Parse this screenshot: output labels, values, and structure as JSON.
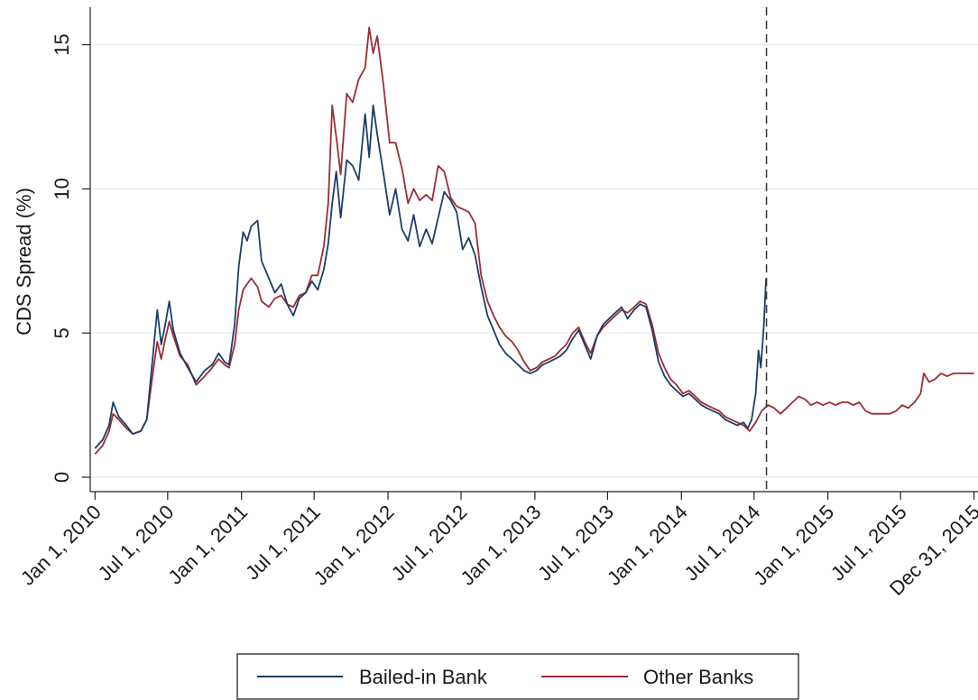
{
  "chart_data": {
    "type": "line",
    "title": "",
    "xlabel": "",
    "ylabel": "CDS Spread (%)",
    "ylim": [
      -0.5,
      16.3
    ],
    "xlim": [
      "2009-12-20",
      "2016-01-10"
    ],
    "yticks": [
      0,
      5,
      10,
      15
    ],
    "xticks": [
      {
        "date": "2010-01-01",
        "label": "Jan 1, 2010"
      },
      {
        "date": "2010-07-01",
        "label": "Jul 1, 2010"
      },
      {
        "date": "2011-01-01",
        "label": "Jan 1, 2011"
      },
      {
        "date": "2011-07-01",
        "label": "Jul 1, 2011"
      },
      {
        "date": "2012-01-01",
        "label": "Jan 1, 2012"
      },
      {
        "date": "2012-07-01",
        "label": "Jul 1, 2012"
      },
      {
        "date": "2013-01-01",
        "label": "Jan 1, 2013"
      },
      {
        "date": "2013-07-01",
        "label": "Jul 1, 2013"
      },
      {
        "date": "2014-01-01",
        "label": "Jan 1, 2014"
      },
      {
        "date": "2014-07-01",
        "label": "Jul 1, 2014"
      },
      {
        "date": "2015-01-01",
        "label": "Jan 1, 2015"
      },
      {
        "date": "2015-07-01",
        "label": "Jul 1, 2015"
      },
      {
        "date": "2015-12-31",
        "label": "Dec 31, 2015"
      }
    ],
    "grid": true,
    "legend_position": "bottom",
    "vline": {
      "date": "2014-08-01",
      "style": "dashed"
    },
    "series": [
      {
        "name": "Bailed-in Bank",
        "color": "#1f3d66",
        "points": [
          [
            "2010-01-01",
            1.0
          ],
          [
            "2010-01-20",
            1.3
          ],
          [
            "2010-02-05",
            1.8
          ],
          [
            "2010-02-15",
            2.6
          ],
          [
            "2010-03-01",
            2.1
          ],
          [
            "2010-03-20",
            1.8
          ],
          [
            "2010-04-05",
            1.5
          ],
          [
            "2010-04-25",
            1.6
          ],
          [
            "2010-05-10",
            2.0
          ],
          [
            "2010-05-25",
            4.2
          ],
          [
            "2010-06-05",
            5.8
          ],
          [
            "2010-06-15",
            4.6
          ],
          [
            "2010-06-25",
            5.3
          ],
          [
            "2010-07-05",
            6.1
          ],
          [
            "2010-07-15",
            5.1
          ],
          [
            "2010-08-01",
            4.3
          ],
          [
            "2010-08-20",
            3.8
          ],
          [
            "2010-09-10",
            3.3
          ],
          [
            "2010-10-01",
            3.7
          ],
          [
            "2010-10-20",
            3.9
          ],
          [
            "2010-11-05",
            4.3
          ],
          [
            "2010-11-20",
            4.0
          ],
          [
            "2010-12-01",
            3.9
          ],
          [
            "2010-12-15",
            5.3
          ],
          [
            "2010-12-25",
            7.3
          ],
          [
            "2011-01-05",
            8.5
          ],
          [
            "2011-01-15",
            8.2
          ],
          [
            "2011-01-25",
            8.7
          ],
          [
            "2011-02-10",
            8.9
          ],
          [
            "2011-02-20",
            7.5
          ],
          [
            "2011-03-10",
            6.9
          ],
          [
            "2011-03-25",
            6.4
          ],
          [
            "2011-04-10",
            6.7
          ],
          [
            "2011-04-25",
            6.0
          ],
          [
            "2011-05-10",
            5.6
          ],
          [
            "2011-05-25",
            6.2
          ],
          [
            "2011-06-10",
            6.4
          ],
          [
            "2011-06-25",
            6.8
          ],
          [
            "2011-07-10",
            6.5
          ],
          [
            "2011-07-25",
            7.2
          ],
          [
            "2011-08-05",
            8.1
          ],
          [
            "2011-08-15",
            9.5
          ],
          [
            "2011-08-25",
            10.6
          ],
          [
            "2011-09-05",
            9.0
          ],
          [
            "2011-09-20",
            11.0
          ],
          [
            "2011-10-05",
            10.8
          ],
          [
            "2011-10-20",
            10.3
          ],
          [
            "2011-11-05",
            12.6
          ],
          [
            "2011-11-15",
            11.1
          ],
          [
            "2011-11-25",
            12.9
          ],
          [
            "2011-12-05",
            11.9
          ],
          [
            "2011-12-20",
            10.6
          ],
          [
            "2012-01-05",
            9.1
          ],
          [
            "2012-01-20",
            10.0
          ],
          [
            "2012-02-05",
            8.6
          ],
          [
            "2012-02-20",
            8.2
          ],
          [
            "2012-03-05",
            9.1
          ],
          [
            "2012-03-20",
            8.0
          ],
          [
            "2012-04-05",
            8.6
          ],
          [
            "2012-04-20",
            8.1
          ],
          [
            "2012-05-05",
            9.0
          ],
          [
            "2012-05-20",
            9.9
          ],
          [
            "2012-06-05",
            9.6
          ],
          [
            "2012-06-20",
            9.2
          ],
          [
            "2012-07-05",
            7.9
          ],
          [
            "2012-07-20",
            8.3
          ],
          [
            "2012-08-05",
            7.7
          ],
          [
            "2012-08-20",
            6.6
          ],
          [
            "2012-09-05",
            5.6
          ],
          [
            "2012-09-20",
            5.1
          ],
          [
            "2012-10-05",
            4.6
          ],
          [
            "2012-10-20",
            4.3
          ],
          [
            "2012-11-05",
            4.1
          ],
          [
            "2012-11-20",
            3.9
          ],
          [
            "2012-12-05",
            3.7
          ],
          [
            "2012-12-20",
            3.6
          ],
          [
            "2013-01-05",
            3.7
          ],
          [
            "2013-01-20",
            3.9
          ],
          [
            "2013-02-05",
            4.0
          ],
          [
            "2013-02-20",
            4.1
          ],
          [
            "2013-03-05",
            4.2
          ],
          [
            "2013-03-20",
            4.4
          ],
          [
            "2013-04-05",
            4.8
          ],
          [
            "2013-04-20",
            5.1
          ],
          [
            "2013-05-05",
            4.6
          ],
          [
            "2013-05-20",
            4.1
          ],
          [
            "2013-06-05",
            4.9
          ],
          [
            "2013-06-20",
            5.3
          ],
          [
            "2013-07-05",
            5.5
          ],
          [
            "2013-07-20",
            5.7
          ],
          [
            "2013-08-05",
            5.9
          ],
          [
            "2013-08-20",
            5.5
          ],
          [
            "2013-09-05",
            5.8
          ],
          [
            "2013-09-20",
            6.0
          ],
          [
            "2013-10-05",
            5.9
          ],
          [
            "2013-10-20",
            5.1
          ],
          [
            "2013-11-05",
            4.0
          ],
          [
            "2013-11-20",
            3.5
          ],
          [
            "2013-12-05",
            3.2
          ],
          [
            "2013-12-20",
            3.0
          ],
          [
            "2014-01-05",
            2.8
          ],
          [
            "2014-01-20",
            2.9
          ],
          [
            "2014-02-05",
            2.7
          ],
          [
            "2014-02-20",
            2.5
          ],
          [
            "2014-03-05",
            2.4
          ],
          [
            "2014-03-20",
            2.3
          ],
          [
            "2014-04-05",
            2.2
          ],
          [
            "2014-04-20",
            2.0
          ],
          [
            "2014-05-05",
            1.9
          ],
          [
            "2014-05-20",
            1.8
          ],
          [
            "2014-06-05",
            1.9
          ],
          [
            "2014-06-15",
            1.7
          ],
          [
            "2014-06-25",
            2.0
          ],
          [
            "2014-07-05",
            2.9
          ],
          [
            "2014-07-12",
            4.4
          ],
          [
            "2014-07-18",
            3.8
          ],
          [
            "2014-07-25",
            5.2
          ],
          [
            "2014-07-31",
            6.9
          ]
        ]
      },
      {
        "name": "Other Banks",
        "color": "#9b2d35",
        "points": [
          [
            "2010-01-01",
            0.8
          ],
          [
            "2010-01-20",
            1.1
          ],
          [
            "2010-02-05",
            1.6
          ],
          [
            "2010-02-15",
            2.2
          ],
          [
            "2010-03-01",
            2.0
          ],
          [
            "2010-03-20",
            1.7
          ],
          [
            "2010-04-05",
            1.5
          ],
          [
            "2010-04-25",
            1.6
          ],
          [
            "2010-05-10",
            2.0
          ],
          [
            "2010-05-25",
            3.6
          ],
          [
            "2010-06-05",
            4.7
          ],
          [
            "2010-06-15",
            4.1
          ],
          [
            "2010-06-25",
            4.8
          ],
          [
            "2010-07-05",
            5.4
          ],
          [
            "2010-07-15",
            4.9
          ],
          [
            "2010-08-01",
            4.2
          ],
          [
            "2010-08-20",
            3.9
          ],
          [
            "2010-09-10",
            3.2
          ],
          [
            "2010-10-01",
            3.5
          ],
          [
            "2010-10-20",
            3.8
          ],
          [
            "2010-11-05",
            4.1
          ],
          [
            "2010-11-20",
            3.9
          ],
          [
            "2010-12-01",
            3.8
          ],
          [
            "2010-12-15",
            4.6
          ],
          [
            "2010-12-25",
            5.8
          ],
          [
            "2011-01-05",
            6.5
          ],
          [
            "2011-01-15",
            6.7
          ],
          [
            "2011-01-25",
            6.9
          ],
          [
            "2011-02-10",
            6.6
          ],
          [
            "2011-02-20",
            6.1
          ],
          [
            "2011-03-10",
            5.9
          ],
          [
            "2011-03-25",
            6.2
          ],
          [
            "2011-04-10",
            6.3
          ],
          [
            "2011-04-25",
            6.0
          ],
          [
            "2011-05-10",
            5.9
          ],
          [
            "2011-05-25",
            6.3
          ],
          [
            "2011-06-10",
            6.4
          ],
          [
            "2011-06-25",
            7.0
          ],
          [
            "2011-07-10",
            7.0
          ],
          [
            "2011-07-25",
            8.0
          ],
          [
            "2011-08-05",
            9.5
          ],
          [
            "2011-08-15",
            12.9
          ],
          [
            "2011-08-25",
            11.8
          ],
          [
            "2011-09-05",
            10.5
          ],
          [
            "2011-09-20",
            13.3
          ],
          [
            "2011-10-05",
            13.0
          ],
          [
            "2011-10-20",
            13.8
          ],
          [
            "2011-11-05",
            14.2
          ],
          [
            "2011-11-15",
            15.6
          ],
          [
            "2011-11-25",
            14.7
          ],
          [
            "2011-12-05",
            15.3
          ],
          [
            "2011-12-20",
            13.7
          ],
          [
            "2012-01-05",
            11.6
          ],
          [
            "2012-01-20",
            11.6
          ],
          [
            "2012-02-05",
            10.7
          ],
          [
            "2012-02-20",
            9.5
          ],
          [
            "2012-03-05",
            10.0
          ],
          [
            "2012-03-20",
            9.6
          ],
          [
            "2012-04-05",
            9.8
          ],
          [
            "2012-04-20",
            9.6
          ],
          [
            "2012-05-05",
            10.8
          ],
          [
            "2012-05-20",
            10.6
          ],
          [
            "2012-06-05",
            9.7
          ],
          [
            "2012-06-20",
            9.4
          ],
          [
            "2012-07-05",
            9.3
          ],
          [
            "2012-07-20",
            9.2
          ],
          [
            "2012-08-05",
            8.8
          ],
          [
            "2012-08-20",
            7.0
          ],
          [
            "2012-09-05",
            6.1
          ],
          [
            "2012-09-20",
            5.6
          ],
          [
            "2012-10-05",
            5.2
          ],
          [
            "2012-10-20",
            4.9
          ],
          [
            "2012-11-05",
            4.7
          ],
          [
            "2012-11-20",
            4.4
          ],
          [
            "2012-12-05",
            4.0
          ],
          [
            "2012-12-20",
            3.7
          ],
          [
            "2013-01-05",
            3.8
          ],
          [
            "2013-01-20",
            4.0
          ],
          [
            "2013-02-05",
            4.1
          ],
          [
            "2013-02-20",
            4.2
          ],
          [
            "2013-03-05",
            4.4
          ],
          [
            "2013-03-20",
            4.6
          ],
          [
            "2013-04-05",
            5.0
          ],
          [
            "2013-04-20",
            5.2
          ],
          [
            "2013-05-05",
            4.7
          ],
          [
            "2013-05-20",
            4.3
          ],
          [
            "2013-06-05",
            4.9
          ],
          [
            "2013-06-20",
            5.2
          ],
          [
            "2013-07-05",
            5.4
          ],
          [
            "2013-07-20",
            5.6
          ],
          [
            "2013-08-05",
            5.8
          ],
          [
            "2013-08-20",
            5.7
          ],
          [
            "2013-09-05",
            5.9
          ],
          [
            "2013-09-20",
            6.1
          ],
          [
            "2013-10-05",
            6.0
          ],
          [
            "2013-10-20",
            5.3
          ],
          [
            "2013-11-05",
            4.3
          ],
          [
            "2013-11-20",
            3.8
          ],
          [
            "2013-12-05",
            3.4
          ],
          [
            "2013-12-20",
            3.2
          ],
          [
            "2014-01-05",
            2.9
          ],
          [
            "2014-01-20",
            3.0
          ],
          [
            "2014-02-05",
            2.8
          ],
          [
            "2014-02-20",
            2.6
          ],
          [
            "2014-03-05",
            2.5
          ],
          [
            "2014-03-20",
            2.4
          ],
          [
            "2014-04-05",
            2.3
          ],
          [
            "2014-04-20",
            2.1
          ],
          [
            "2014-05-05",
            2.0
          ],
          [
            "2014-05-20",
            1.9
          ],
          [
            "2014-06-05",
            1.8
          ],
          [
            "2014-06-20",
            1.6
          ],
          [
            "2014-07-05",
            1.9
          ],
          [
            "2014-07-20",
            2.3
          ],
          [
            "2014-08-05",
            2.5
          ],
          [
            "2014-08-20",
            2.4
          ],
          [
            "2014-09-05",
            2.2
          ],
          [
            "2014-09-20",
            2.4
          ],
          [
            "2014-10-05",
            2.6
          ],
          [
            "2014-10-20",
            2.8
          ],
          [
            "2014-11-05",
            2.7
          ],
          [
            "2014-11-20",
            2.5
          ],
          [
            "2014-12-05",
            2.6
          ],
          [
            "2014-12-20",
            2.5
          ],
          [
            "2015-01-05",
            2.6
          ],
          [
            "2015-01-20",
            2.5
          ],
          [
            "2015-02-05",
            2.6
          ],
          [
            "2015-02-20",
            2.6
          ],
          [
            "2015-03-05",
            2.5
          ],
          [
            "2015-03-20",
            2.6
          ],
          [
            "2015-04-05",
            2.3
          ],
          [
            "2015-04-20",
            2.2
          ],
          [
            "2015-05-05",
            2.2
          ],
          [
            "2015-05-20",
            2.2
          ],
          [
            "2015-06-05",
            2.2
          ],
          [
            "2015-06-20",
            2.3
          ],
          [
            "2015-07-05",
            2.5
          ],
          [
            "2015-07-20",
            2.4
          ],
          [
            "2015-08-05",
            2.6
          ],
          [
            "2015-08-20",
            2.9
          ],
          [
            "2015-08-28",
            3.6
          ],
          [
            "2015-09-10",
            3.3
          ],
          [
            "2015-09-25",
            3.4
          ],
          [
            "2015-10-10",
            3.6
          ],
          [
            "2015-10-25",
            3.5
          ],
          [
            "2015-11-10",
            3.6
          ],
          [
            "2015-11-25",
            3.6
          ],
          [
            "2015-12-10",
            3.6
          ],
          [
            "2015-12-31",
            3.6
          ]
        ]
      }
    ]
  }
}
